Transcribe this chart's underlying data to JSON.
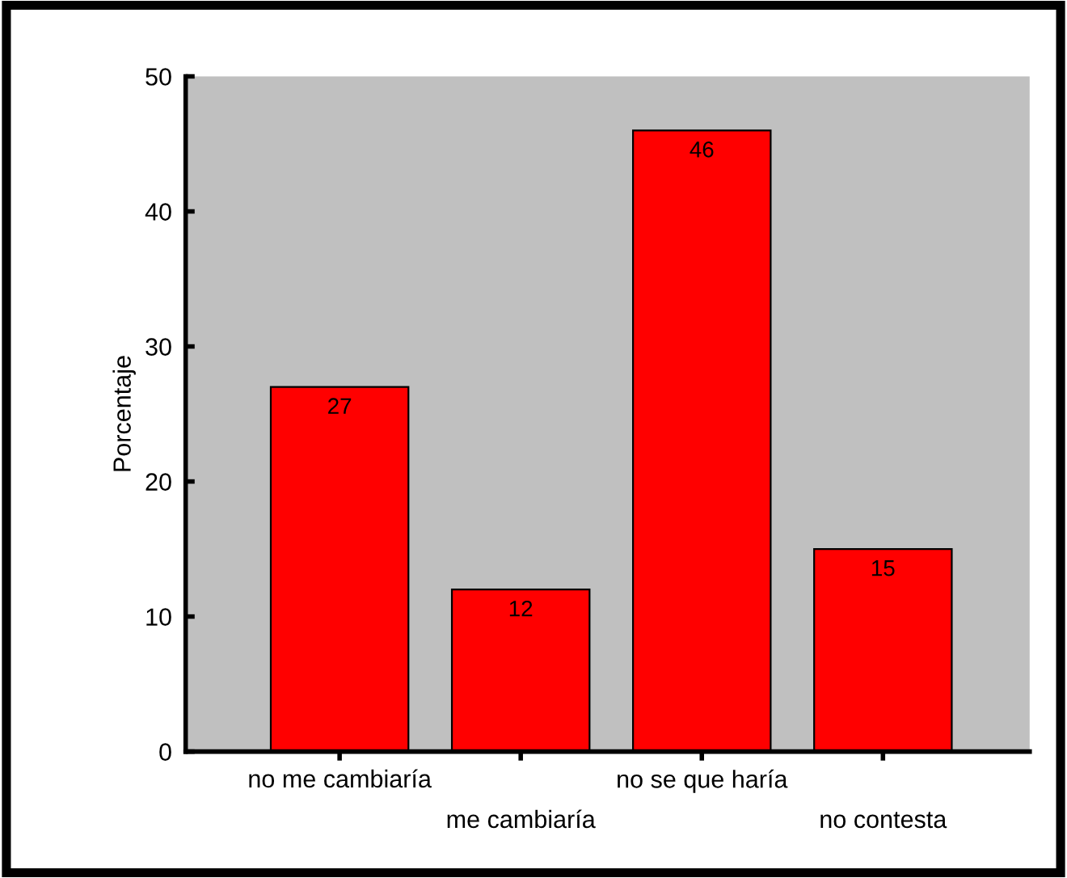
{
  "chart_data": {
    "type": "bar",
    "ylabel": "Porcentaje",
    "categories": [
      "no me cambiaría",
      "me cambiaría",
      "no se que haría",
      "no contesta"
    ],
    "values": [
      27,
      12,
      46,
      15
    ],
    "color": "#ff0000",
    "ylim": [
      0,
      50
    ],
    "yticks": [
      0,
      10,
      20,
      30,
      40,
      50
    ],
    "grid": false,
    "data_labels": true
  }
}
